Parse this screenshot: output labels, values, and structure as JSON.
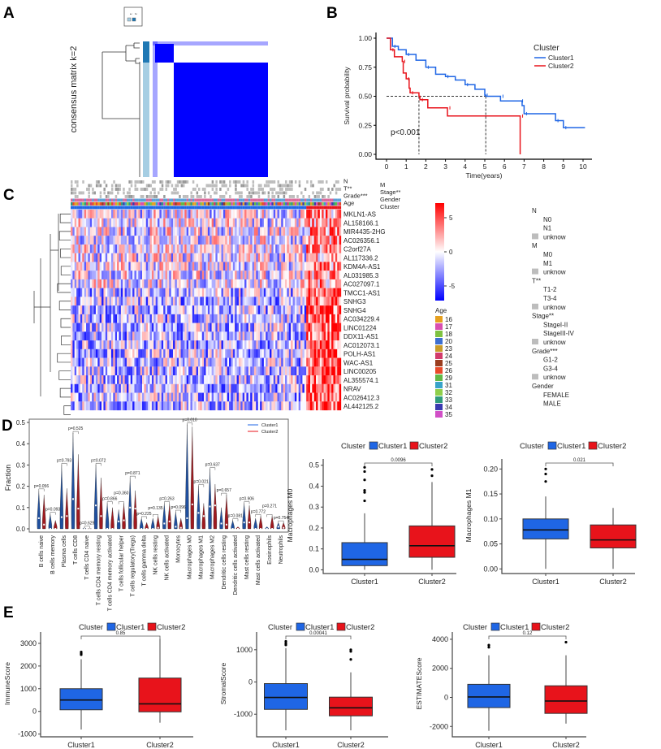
{
  "panels": {
    "A": "A",
    "B": "B",
    "C": "C",
    "D": "D",
    "E": "E"
  },
  "colors": {
    "cluster1": "#1f66e5",
    "cluster2": "#e8131b",
    "consensus": "#0000ff",
    "heat_high": "#ff0000",
    "heat_mid": "#ffffff",
    "heat_low": "#0000ff",
    "unknown": "#bdbdbd"
  },
  "chart_data": [
    {
      "panel": "A",
      "type": "heatmap",
      "ylabel": "consensus matrix k=2",
      "legend": [
        "1",
        "2"
      ],
      "legend_colors": [
        "#a6cee3",
        "#1f78b4"
      ]
    },
    {
      "panel": "B",
      "type": "line",
      "xlabel": "Time(years)",
      "ylabel": "Survival probability",
      "xlim": [
        0,
        10
      ],
      "ylim": [
        0,
        1
      ],
      "xticks": [
        "0",
        "1",
        "2",
        "3",
        "4",
        "5",
        "6",
        "7",
        "8",
        "9",
        "10"
      ],
      "yticks": [
        "0.00",
        "0.25",
        "0.50",
        "0.75",
        "1.00"
      ],
      "legend_title": "Cluster",
      "annotation": "p<0.001",
      "median_survival": {
        "Cluster1": 5.05,
        "Cluster2": 1.65
      },
      "series": [
        {
          "name": "Cluster1",
          "color": "#1f66e5",
          "points": [
            [
              0,
              1
            ],
            [
              0.3,
              0.93
            ],
            [
              0.6,
              0.9
            ],
            [
              1,
              0.86
            ],
            [
              1.5,
              0.81
            ],
            [
              2,
              0.75
            ],
            [
              2.5,
              0.69
            ],
            [
              3,
              0.67
            ],
            [
              3.5,
              0.64
            ],
            [
              4,
              0.6
            ],
            [
              4.5,
              0.56
            ],
            [
              5,
              0.51
            ],
            [
              5.05,
              0.5
            ],
            [
              5.8,
              0.5
            ],
            [
              5.8,
              0.46
            ],
            [
              6.8,
              0.46
            ],
            [
              6.9,
              0.42
            ],
            [
              7,
              0.35
            ],
            [
              8.6,
              0.35
            ],
            [
              8.6,
              0.29
            ],
            [
              9,
              0.29
            ],
            [
              9,
              0.23
            ],
            [
              10.1,
              0.23
            ]
          ]
        },
        {
          "name": "Cluster2",
          "color": "#e8131b",
          "points": [
            [
              0,
              1
            ],
            [
              0.2,
              0.9
            ],
            [
              0.4,
              0.84
            ],
            [
              0.8,
              0.8
            ],
            [
              0.85,
              0.7
            ],
            [
              1.0,
              0.65
            ],
            [
              1.15,
              0.57
            ],
            [
              1.2,
              0.53
            ],
            [
              1.65,
              0.5
            ],
            [
              1.7,
              0.47
            ],
            [
              2.1,
              0.4
            ],
            [
              3.1,
              0.4
            ],
            [
              3.1,
              0.33
            ],
            [
              6.8,
              0.33
            ],
            [
              6.8,
              0
            ]
          ]
        }
      ]
    },
    {
      "panel": "C",
      "type": "heatmap",
      "annotation_tracks": [
        "N",
        "M",
        "T**",
        "Stage**",
        "Grade***",
        "Gender",
        "Age",
        "Cluster"
      ],
      "genes": [
        "MKLN1-AS",
        "AL158166.1",
        "MIR4435-2HG",
        "AC026356.1",
        "C2orf27A",
        "AL117336.2",
        "KDM4A-AS1",
        "AL031985.3",
        "AC027097.1",
        "TMCC1-AS1",
        "SNHG3",
        "SNHG4",
        "AC034229.4",
        "LINC01224",
        "DDX11-AS1",
        "AC012073.1",
        "POLH-AS1",
        "WAC-AS1",
        "LINC00205",
        "AL355574.1",
        "NRAV",
        "AC026412.3",
        "AL442125.2"
      ],
      "colorbar_ticks": [
        "5",
        "0",
        "-5"
      ],
      "colorbar_range": [
        -7,
        7
      ],
      "age_legend_title": "Age",
      "age_legend": [
        {
          "label": "16",
          "color": "#e6a01f"
        },
        {
          "label": "17",
          "color": "#d94fb0"
        },
        {
          "label": "18",
          "color": "#7fc241"
        },
        {
          "label": "20",
          "color": "#3d6fd1"
        },
        {
          "label": "23",
          "color": "#c89b2a"
        },
        {
          "label": "24",
          "color": "#d23b6b"
        },
        {
          "label": "25",
          "color": "#9a3d1f"
        },
        {
          "label": "26",
          "color": "#e84a2a"
        },
        {
          "label": "29",
          "color": "#61b845"
        },
        {
          "label": "31",
          "color": "#38a3c9"
        },
        {
          "label": "32",
          "color": "#8fcf4a"
        },
        {
          "label": "33",
          "color": "#2f9b7c"
        },
        {
          "label": "34",
          "color": "#3a3ab0"
        },
        {
          "label": "35",
          "color": "#d14fc6"
        }
      ],
      "clinical_legend": [
        {
          "title": "N",
          "items": [
            {
              "label": "N0"
            },
            {
              "label": "N1"
            },
            {
              "label": "unknow",
              "unknown": true
            }
          ]
        },
        {
          "title": "M",
          "items": [
            {
              "label": "M0"
            },
            {
              "label": "M1"
            },
            {
              "label": "unknow",
              "unknown": true
            }
          ]
        },
        {
          "title": "T**",
          "items": [
            {
              "label": "T1-2"
            },
            {
              "label": "T3-4"
            },
            {
              "label": "unknow",
              "unknown": true
            }
          ]
        },
        {
          "title": "Stage**",
          "items": [
            {
              "label": "StageI-II"
            },
            {
              "label": "StageIII-IV"
            },
            {
              "label": "unknow",
              "unknown": true
            }
          ]
        },
        {
          "title": "Grade***",
          "items": [
            {
              "label": "G1-2"
            },
            {
              "label": "G3-4"
            },
            {
              "label": "unknow",
              "unknown": true
            }
          ]
        },
        {
          "title": "Gender",
          "items": [
            {
              "label": "FEMALE"
            },
            {
              "label": "MALE"
            }
          ]
        }
      ]
    },
    {
      "panel": "D",
      "type": "violin",
      "ylabel": "Fraction",
      "ylim": [
        0,
        0.5
      ],
      "yticks": [
        "0.0",
        "0.1",
        "0.2",
        "0.3",
        "0.4",
        "0.5"
      ],
      "legend": [
        "Cluster1",
        "Cluster2"
      ],
      "categories": [
        "B cells naive",
        "B cells memory",
        "Plasma cells",
        "T cells CD8",
        "T cells CD4 naive",
        "T cells CD4 memory resting",
        "T cells CD4 memory activated",
        "T cells follicular helper",
        "T cells regulatory(Tregs)",
        "T cells gamma delta",
        "NK cells resting",
        "NK cells activated",
        "Monocytes",
        "Macrophages M0",
        "Macrophages M1",
        "Macrophages M2",
        "Dendritic cells resting",
        "Dendritic cells activated",
        "Mast cells resting",
        "Mast cells activated",
        "Eosinophils",
        "Neutrophils"
      ],
      "pvalues": [
        "p=0.056",
        "p=0.093",
        "p=0.793",
        "p=0.525",
        "p=0.629",
        "p=0.072",
        "p=0.866",
        "p=0.360",
        "p=0.871",
        "p=0.225",
        "p=0.135",
        "p=0.263",
        "p=0.096",
        "p=0.010",
        "p=0.021",
        "p=0.637",
        "p=0.657",
        "p=0.081",
        "p=0.906",
        "p=0.772",
        "p=0.271",
        "p=0.754"
      ],
      "series": [
        {
          "name": "Cluster1",
          "max": [
            0.18,
            0.07,
            0.3,
            0.45,
            0.005,
            0.3,
            0.12,
            0.09,
            0.24,
            0.05,
            0.05,
            0.12,
            0.08,
            0.49,
            0.2,
            0.28,
            0.1,
            0.04,
            0.12,
            0.05,
            0.01,
            0.03
          ],
          "median": [
            0.05,
            0.0,
            0.055,
            0.14,
            0.0,
            0.11,
            0.0,
            0.035,
            0.1,
            0.0,
            0.0,
            0.025,
            0.01,
            0.05,
            0.075,
            0.105,
            0.025,
            0.0,
            0.03,
            0.0,
            0.0,
            0.01
          ]
        },
        {
          "name": "Cluster2",
          "max": [
            0.16,
            0.04,
            0.19,
            0.35,
            0.003,
            0.24,
            0.1,
            0.12,
            0.18,
            0.03,
            0.06,
            0.12,
            0.05,
            0.48,
            0.12,
            0.21,
            0.16,
            0.01,
            0.11,
            0.06,
            0.06,
            0.03
          ],
          "median": [
            0.02,
            0.0,
            0.06,
            0.095,
            0.0,
            0.06,
            0.0,
            0.04,
            0.095,
            0.0,
            0.005,
            0.035,
            0.005,
            0.115,
            0.06,
            0.11,
            0.02,
            0.0,
            0.03,
            0.0,
            0.0,
            0.005
          ]
        }
      ]
    },
    {
      "panel": "D",
      "type": "box",
      "ylabel": "Macrophages M0",
      "pvalue": "0.0096",
      "legend_title": "Cluster",
      "categories": [
        "Cluster1",
        "Cluster2"
      ],
      "ylim": [
        -0.01,
        0.53
      ],
      "yticks": [
        0,
        0.1,
        0.2,
        0.3,
        0.4,
        0.5
      ],
      "ytick_labels": [
        "0.0",
        "0.1",
        "0.2",
        "0.3",
        "0.4",
        "0.5"
      ],
      "boxes": [
        {
          "min": 0.0,
          "q1": 0.02,
          "median": 0.05,
          "q3": 0.13,
          "max": 0.27,
          "outliers": [
            0.33,
            0.37,
            0.38,
            0.43,
            0.47,
            0.49
          ]
        },
        {
          "min": 0.0,
          "q1": 0.06,
          "median": 0.115,
          "q3": 0.21,
          "max": 0.42,
          "outliers": [
            0.45,
            0.48
          ]
        }
      ]
    },
    {
      "panel": "D",
      "type": "box",
      "ylabel": "Macrophages M1",
      "pvalue": "0.021",
      "legend_title": "Cluster",
      "categories": [
        "Cluster1",
        "Cluster2"
      ],
      "ylim": [
        -0.006,
        0.22
      ],
      "yticks": [
        0,
        0.05,
        0.1,
        0.15,
        0.2
      ],
      "ytick_labels": [
        "0.00",
        "0.05",
        "0.10",
        "0.15",
        "0.20"
      ],
      "boxes": [
        {
          "min": 0.0,
          "q1": 0.06,
          "median": 0.078,
          "q3": 0.1,
          "max": 0.145,
          "outliers": [
            0.175,
            0.19,
            0.2
          ]
        },
        {
          "min": 0.0,
          "q1": 0.042,
          "median": 0.058,
          "q3": 0.088,
          "max": 0.122,
          "outliers": []
        }
      ]
    },
    {
      "panel": "E",
      "type": "box",
      "ylabel": "ImmuneScore",
      "pvalue": "0.85",
      "legend_title": "Cluster",
      "categories": [
        "Cluster1",
        "Cluster2"
      ],
      "ylim": [
        -1050,
        3500
      ],
      "yticks": [
        -1000,
        0,
        1000,
        2000,
        3000
      ],
      "ytick_labels": [
        "-1000",
        "0",
        "1000",
        "2000",
        "3000"
      ],
      "boxes": [
        {
          "min": -800,
          "q1": 70,
          "median": 500,
          "q3": 1000,
          "max": 2300,
          "outliers": [
            2500,
            2550,
            2620
          ]
        },
        {
          "min": -500,
          "q1": -20,
          "median": 330,
          "q3": 1470,
          "max": 3200,
          "outliers": []
        }
      ]
    },
    {
      "panel": "E",
      "type": "box",
      "ylabel": "StromalScore",
      "pvalue": "0.00041",
      "legend_title": "Cluster",
      "categories": [
        "Cluster1",
        "Cluster2"
      ],
      "ylim": [
        -1650,
        1550
      ],
      "yticks": [
        -1000,
        0,
        1000
      ],
      "ytick_labels": [
        "-1000",
        "0",
        "1000"
      ],
      "boxes": [
        {
          "min": -1500,
          "q1": -850,
          "median": -480,
          "q3": -50,
          "max": 1050,
          "outliers": [
            1150,
            1200,
            1260
          ]
        },
        {
          "min": -1500,
          "q1": -1050,
          "median": -800,
          "q3": -470,
          "max": 300,
          "outliers": [
            700,
            950,
            1000
          ]
        }
      ]
    },
    {
      "panel": "E",
      "type": "box",
      "ylabel": "ESTIMATEScore",
      "pvalue": "0.12",
      "legend_title": "Cluster",
      "categories": [
        "Cluster1",
        "Cluster2"
      ],
      "ylim": [
        -2600,
        4500
      ],
      "yticks": [
        -2000,
        0,
        2000,
        4000
      ],
      "ytick_labels": [
        "-2000",
        "0",
        "2000",
        "4000"
      ],
      "boxes": [
        {
          "min": -2300,
          "q1": -700,
          "median": 30,
          "q3": 900,
          "max": 2900,
          "outliers": [
            3450,
            3600
          ]
        },
        {
          "min": -1800,
          "q1": -1100,
          "median": -250,
          "q3": 800,
          "max": 2900,
          "outliers": [
            3800
          ]
        }
      ]
    }
  ]
}
